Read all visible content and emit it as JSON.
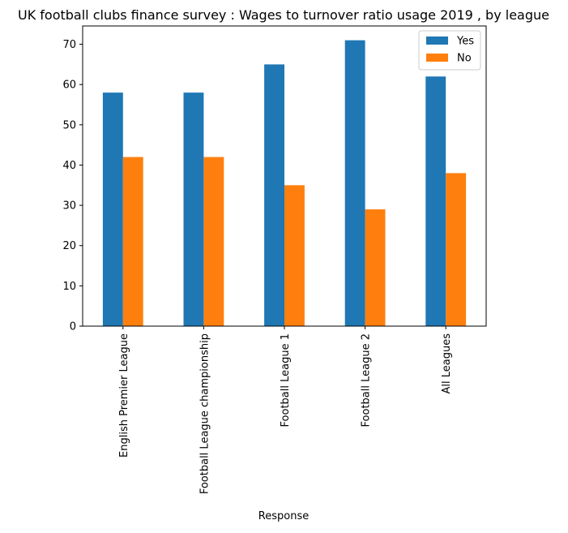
{
  "chart_data": {
    "type": "bar",
    "title": "UK football clubs finance survey : Wages to turnover ratio usage 2019 , by league",
    "xlabel": "Response",
    "ylabel": "",
    "categories": [
      "English Premier League",
      "Football League championship",
      "Football League 1",
      "Football League 2",
      "All Leagues"
    ],
    "series": [
      {
        "name": "Yes",
        "values": [
          58,
          58,
          65,
          71,
          62
        ],
        "color": "#1f77b4"
      },
      {
        "name": "No",
        "values": [
          42,
          42,
          35,
          29,
          38
        ],
        "color": "#ff7f0e"
      }
    ],
    "ylim": [
      0,
      74.55
    ],
    "yticks": [
      0,
      10,
      20,
      30,
      40,
      50,
      60,
      70
    ],
    "grid": false,
    "legend_position": "top-right",
    "x_tick_rotation": "vertical"
  }
}
